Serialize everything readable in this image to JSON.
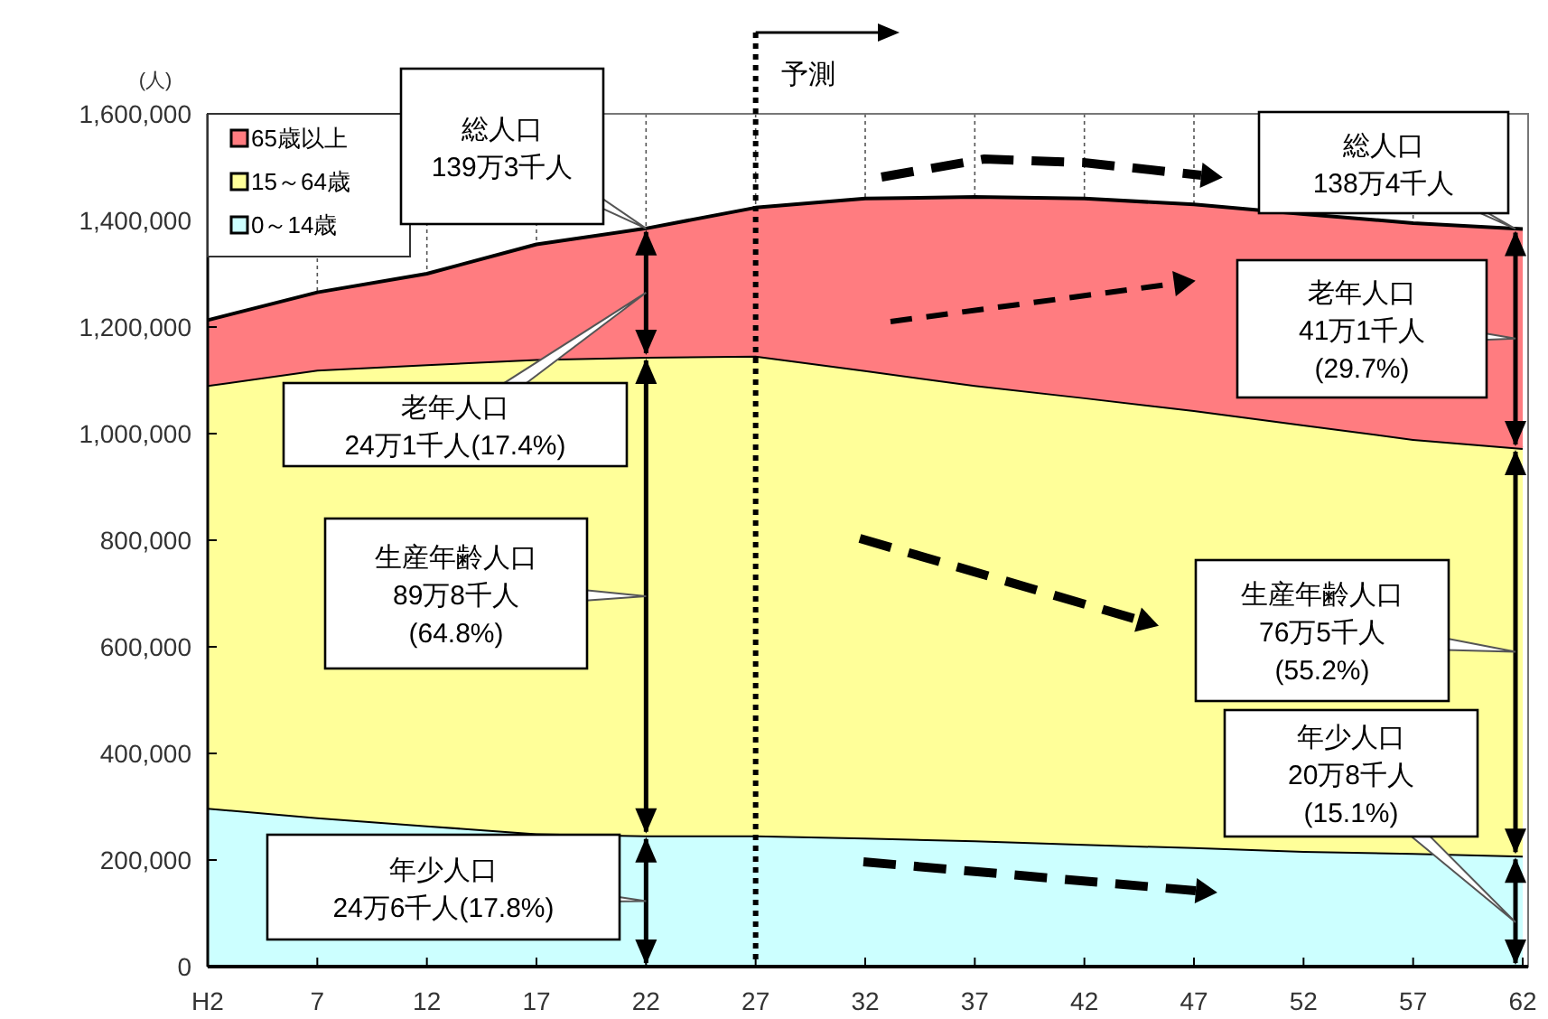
{
  "chart_data": {
    "type": "area",
    "stacked": true,
    "ylabel": "(人)",
    "categories": [
      "H2",
      "7",
      "12",
      "17",
      "22",
      "27",
      "32",
      "37",
      "42",
      "47",
      "52",
      "57",
      "62"
    ],
    "series": [
      {
        "name": "0～14歳",
        "color": "#ccffff",
        "values": [
          298000,
          280000,
          265000,
          250000,
          246000,
          246000,
          242000,
          237000,
          230000,
          224000,
          217000,
          213000,
          208000
        ]
      },
      {
        "name": "15～64歳",
        "color": "#ffff99",
        "values": [
          793000,
          840000,
          865000,
          890000,
          898000,
          900000,
          877000,
          854000,
          838000,
          820000,
          800000,
          777000,
          765000
        ]
      },
      {
        "name": "65歳以上",
        "color": "#ff7c80",
        "values": [
          122000,
          145000,
          170000,
          215000,
          241000,
          278000,
          322000,
          353000,
          373000,
          386000,
          395000,
          405000,
          411000
        ]
      }
    ],
    "ylim": [
      0,
      1600000
    ],
    "yticks": [
      0,
      {
        "value": 200000,
        "label": "200,000"
      },
      {
        "value": 400000,
        "label": "400,000"
      },
      {
        "value": 600000,
        "label": "600,000"
      },
      {
        "value": 800000,
        "label": "800,000"
      },
      {
        "value": 1000000,
        "label": "1,000,000"
      },
      {
        "value": 1200000,
        "label": "1,200,000"
      },
      {
        "value": 1400000,
        "label": "1,400,000"
      },
      {
        "value": 1600000,
        "label": "1,600,000"
      }
    ],
    "grid": "x",
    "legend": "top left",
    "ref_lines": [
      {
        "axis": "x",
        "value": "27",
        "label": "予測",
        "line_style": "dotted"
      }
    ],
    "annotations": [
      "総人口\n139万3千人",
      "老年人口\n24万1千人(17.4%)",
      "生産年齢人口\n89万8千人\n(64.8%)",
      "年少人口\n24万6千人(17.8%)",
      "総人口\n138万4千人",
      "老年人口\n41万1千人\n(29.7%)",
      "生産年齢人口\n76万5千人\n(55.2%)",
      "年少人口\n20万8千人\n(15.1%)"
    ]
  }
}
